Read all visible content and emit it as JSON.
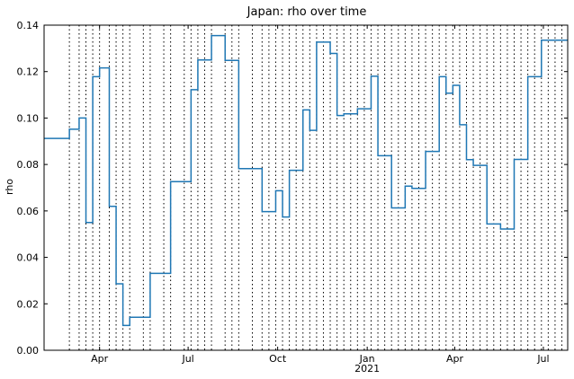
{
  "chart_data": {
    "type": "line",
    "title": "Japan: rho over time",
    "xlabel": "",
    "ylabel": "rho",
    "ylim": [
      0,
      0.14
    ],
    "xlim": [
      "2020-02-04",
      "2021-07-26"
    ],
    "grid": "vertical dotted lines at step changes",
    "drawstyle": "steps-post",
    "y_ticks": [
      "0.00",
      "0.02",
      "0.04",
      "0.06",
      "0.08",
      "0.10",
      "0.12",
      "0.14"
    ],
    "y_tick_values": [
      0,
      0.02,
      0.04,
      0.06,
      0.08,
      0.1,
      0.12,
      0.14
    ],
    "x_ticks": [
      {
        "date": "2020-04-01",
        "label": "Apr",
        "sublabel": ""
      },
      {
        "date": "2020-07-01",
        "label": "Jul",
        "sublabel": ""
      },
      {
        "date": "2020-10-01",
        "label": "Oct",
        "sublabel": ""
      },
      {
        "date": "2021-01-01",
        "label": "Jan",
        "sublabel": "2021"
      },
      {
        "date": "2021-04-01",
        "label": "Apr",
        "sublabel": ""
      },
      {
        "date": "2021-07-01",
        "label": "Jul",
        "sublabel": ""
      }
    ],
    "series": [
      {
        "name": "",
        "color": "#1f77b4",
        "x": [
          "2020-02-04",
          "2020-03-01",
          "2020-03-11",
          "2020-03-18",
          "2020-03-25",
          "2020-04-01",
          "2020-04-11",
          "2020-04-18",
          "2020-04-25",
          "2020-05-02",
          "2020-05-16",
          "2020-05-23",
          "2020-06-06",
          "2020-06-13",
          "2020-06-27",
          "2020-07-04",
          "2020-07-11",
          "2020-07-18",
          "2020-07-25",
          "2020-08-08",
          "2020-08-15",
          "2020-08-22",
          "2020-09-05",
          "2020-09-15",
          "2020-09-22",
          "2020-09-29",
          "2020-10-06",
          "2020-10-13",
          "2020-10-20",
          "2020-10-27",
          "2020-11-03",
          "2020-11-10",
          "2020-11-17",
          "2020-11-24",
          "2020-12-01",
          "2020-12-08",
          "2020-12-15",
          "2020-12-22",
          "2020-12-29",
          "2021-01-05",
          "2021-01-12",
          "2021-01-19",
          "2021-01-26",
          "2021-02-02",
          "2021-02-09",
          "2021-02-16",
          "2021-02-23",
          "2021-03-02",
          "2021-03-09",
          "2021-03-16",
          "2021-03-23",
          "2021-03-30",
          "2021-04-06",
          "2021-04-13",
          "2021-04-20",
          "2021-04-27",
          "2021-05-04",
          "2021-05-11",
          "2021-05-18",
          "2021-05-25",
          "2021-06-01",
          "2021-06-08",
          "2021-06-15",
          "2021-06-22",
          "2021-06-29",
          "2021-07-06",
          "2021-07-13",
          "2021-07-20"
        ],
        "y": [
          0.0912,
          0.0952,
          0.1,
          0.055,
          0.1178,
          0.1216,
          0.062,
          0.0286,
          0.0107,
          0.0142,
          0.0142,
          0.0331,
          0.0331,
          0.0726,
          0.0726,
          0.1122,
          0.125,
          0.125,
          0.1355,
          0.1248,
          0.1248,
          0.0782,
          0.0782,
          0.0597,
          0.0597,
          0.0687,
          0.0574,
          0.0775,
          0.0775,
          0.1035,
          0.0947,
          0.1327,
          0.1327,
          0.1278,
          0.1011,
          0.1018,
          0.1018,
          0.104,
          0.104,
          0.118,
          0.0838,
          0.0838,
          0.0613,
          0.0613,
          0.0707,
          0.0697,
          0.0697,
          0.0856,
          0.0856,
          0.1178,
          0.1107,
          0.1141,
          0.0971,
          0.0821,
          0.0796,
          0.0796,
          0.0544,
          0.0544,
          0.0522,
          0.0522,
          0.0822,
          0.0822,
          0.1178,
          0.1178,
          0.1335,
          0.1335,
          0.1335,
          0.1335
        ]
      }
    ]
  }
}
